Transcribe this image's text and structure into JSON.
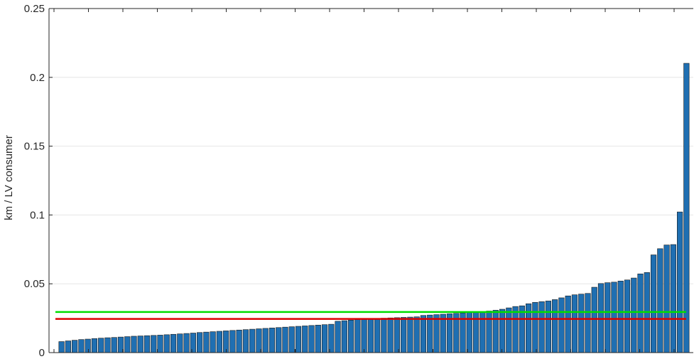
{
  "chart_data": {
    "type": "bar",
    "title": "",
    "xlabel": "",
    "ylabel": "km / LV consumer",
    "ylim": [
      0,
      0.25
    ],
    "yticks": [
      0,
      0.05,
      0.1,
      0.15,
      0.2,
      0.25
    ],
    "ytick_labels": [
      "0",
      "0.05",
      "0.1",
      "0.15",
      "0.2",
      "0.25"
    ],
    "grid": true,
    "bar_color": "#1f6fb2",
    "values": [
      0.008,
      0.0085,
      0.009,
      0.0095,
      0.0098,
      0.0102,
      0.0105,
      0.0108,
      0.011,
      0.0113,
      0.0116,
      0.0119,
      0.0121,
      0.0123,
      0.0125,
      0.0127,
      0.013,
      0.0133,
      0.0136,
      0.0139,
      0.0142,
      0.0146,
      0.0149,
      0.0152,
      0.0155,
      0.0158,
      0.0161,
      0.0164,
      0.0167,
      0.017,
      0.0173,
      0.0176,
      0.0179,
      0.0182,
      0.0185,
      0.0188,
      0.0191,
      0.0194,
      0.0197,
      0.02,
      0.0203,
      0.0206,
      0.0228,
      0.0232,
      0.0236,
      0.024,
      0.0243,
      0.0246,
      0.0248,
      0.025,
      0.0252,
      0.0254,
      0.0256,
      0.0258,
      0.026,
      0.027,
      0.0273,
      0.0276,
      0.0279,
      0.0282,
      0.0285,
      0.0288,
      0.0291,
      0.0294,
      0.0298,
      0.0302,
      0.0308,
      0.0315,
      0.0325,
      0.0335,
      0.034,
      0.0355,
      0.0365,
      0.037,
      0.0375,
      0.0385,
      0.0398,
      0.0412,
      0.042,
      0.0425,
      0.043,
      0.0475,
      0.0502,
      0.0508,
      0.0512,
      0.052,
      0.0528,
      0.0542,
      0.0572,
      0.0582,
      0.071,
      0.0755,
      0.0782,
      0.0785,
      0.1022,
      0.2102
    ],
    "reference_lines": [
      {
        "color": "#00dd00",
        "value": 0.0295
      },
      {
        "color": "#dd0000",
        "value": 0.0245
      }
    ]
  }
}
